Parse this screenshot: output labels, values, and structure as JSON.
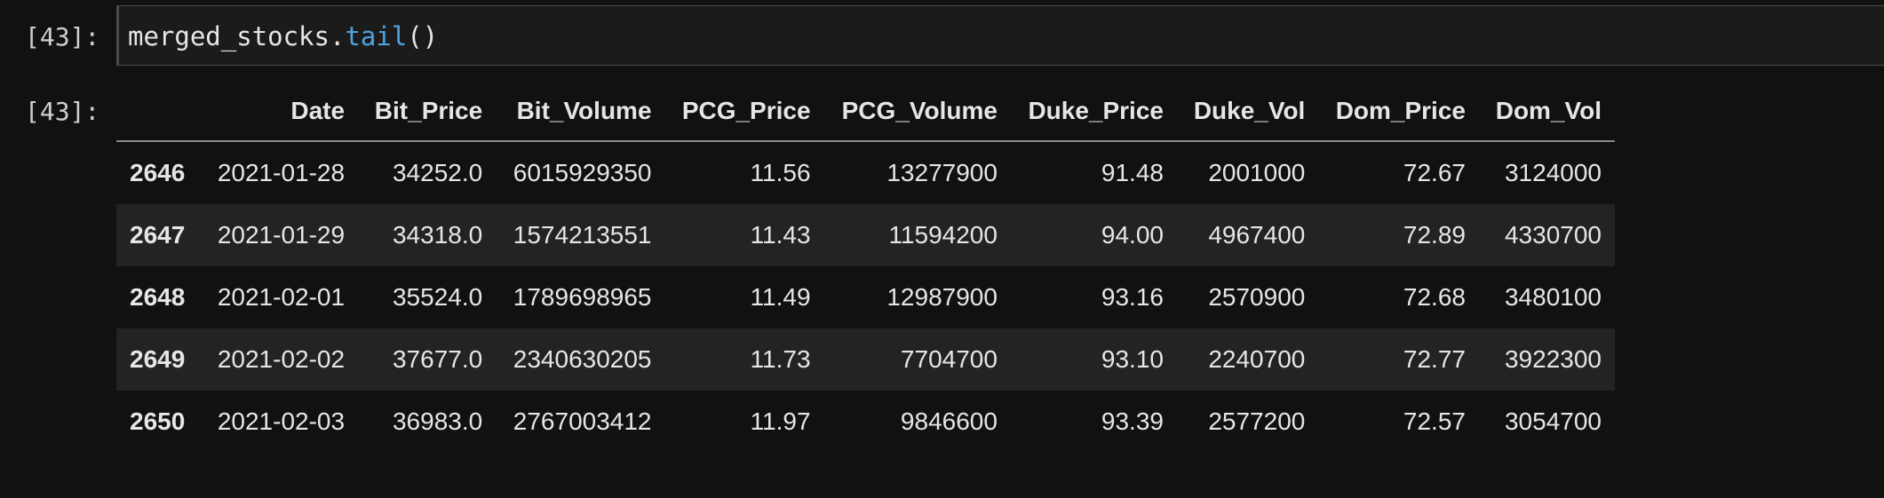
{
  "input_cell": {
    "prompt": "[43]:",
    "code_object": "merged_stocks.",
    "code_method": "tail",
    "code_args": "()"
  },
  "output_cell": {
    "prompt": "[43]:"
  },
  "table": {
    "columns": [
      "",
      "Date",
      "Bit_Price",
      "Bit_Volume",
      "PCG_Price",
      "PCG_Volume",
      "Duke_Price",
      "Duke_Vol",
      "Dom_Price",
      "Dom_Vol"
    ],
    "rows": [
      {
        "index": "2646",
        "cells": [
          "2021-01-28",
          "34252.0",
          "6015929350",
          "11.56",
          "13277900",
          "91.48",
          "2001000",
          "72.67",
          "3124000"
        ]
      },
      {
        "index": "2647",
        "cells": [
          "2021-01-29",
          "34318.0",
          "1574213551",
          "11.43",
          "11594200",
          "94.00",
          "4967400",
          "72.89",
          "4330700"
        ]
      },
      {
        "index": "2648",
        "cells": [
          "2021-02-01",
          "35524.0",
          "1789698965",
          "11.49",
          "12987900",
          "93.16",
          "2570900",
          "72.68",
          "3480100"
        ]
      },
      {
        "index": "2649",
        "cells": [
          "2021-02-02",
          "37677.0",
          "2340630205",
          "11.73",
          "7704700",
          "93.10",
          "2240700",
          "72.77",
          "3922300"
        ]
      },
      {
        "index": "2650",
        "cells": [
          "2021-02-03",
          "36983.0",
          "2767003412",
          "11.97",
          "9846600",
          "93.39",
          "2577200",
          "72.57",
          "3054700"
        ]
      }
    ]
  }
}
